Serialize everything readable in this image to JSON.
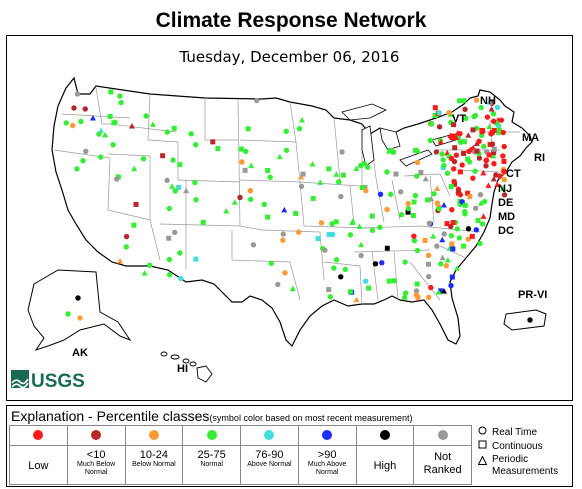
{
  "title": "Climate Response Network",
  "date": "Tuesday, December 06, 2016",
  "state_labels": [
    "NH",
    "VT",
    "MA",
    "RI",
    "CT",
    "NJ",
    "DE",
    "MD",
    "DC"
  ],
  "region_labels": [
    "AK",
    "HI",
    "PR-VI"
  ],
  "logo_text": "USGS",
  "legend": {
    "title": "Explanation - Percentile classes",
    "subtitle": "(symbol color based on most recent measurement)",
    "classes": [
      {
        "key": "low",
        "color": "#ff1a1a",
        "top": "",
        "sub": "",
        "label": "Low"
      },
      {
        "key": "much-below-normal",
        "color": "#b8262b",
        "top": "<10",
        "sub": "Much Below Normal",
        "label": ""
      },
      {
        "key": "below-normal",
        "color": "#ff9933",
        "top": "10-24",
        "sub": "Below Normal",
        "label": ""
      },
      {
        "key": "normal",
        "color": "#33ee33",
        "top": "25-75",
        "sub": "Normal",
        "label": ""
      },
      {
        "key": "above-normal",
        "color": "#44dddd",
        "top": "76-90",
        "sub": "Above Normal",
        "label": ""
      },
      {
        "key": "much-above-normal",
        "color": "#1a2cff",
        "top": ">90",
        "sub": "Much Above Normal",
        "label": ""
      },
      {
        "key": "high",
        "color": "#000000",
        "top": "",
        "sub": "",
        "label": "High"
      },
      {
        "key": "not-ranked",
        "color": "#999999",
        "top": "",
        "sub": "",
        "label": "Not Ranked"
      }
    ],
    "symbols": [
      {
        "shape": "circle",
        "icon": "circle-outline-icon",
        "label": "Real Time"
      },
      {
        "shape": "square",
        "icon": "square-outline-icon",
        "label": "Continuous"
      },
      {
        "shape": "triangle",
        "icon": "triangle-outline-icon",
        "label": "Periodic Measurements"
      }
    ]
  },
  "colors": {
    "border": "#000000",
    "state_lines": "#9a9a9a",
    "land": "#ffffff",
    "logo": "#1b6b52"
  }
}
